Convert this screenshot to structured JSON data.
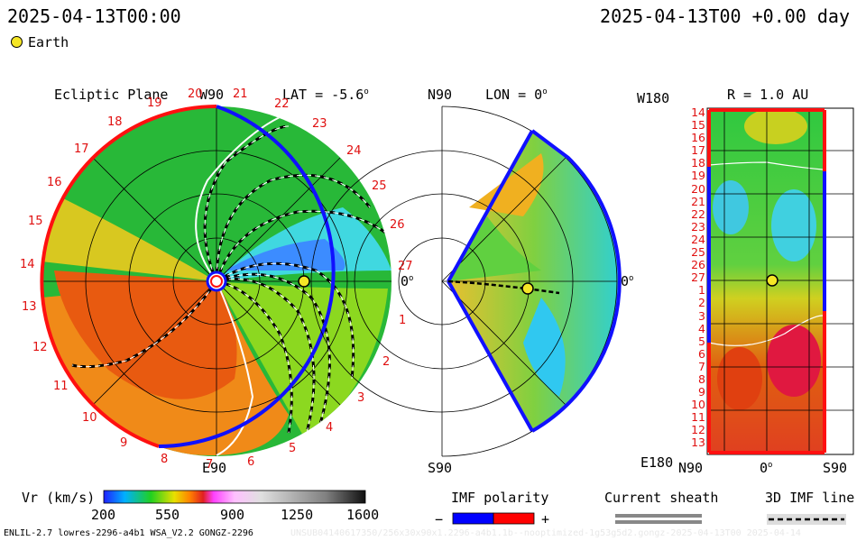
{
  "header": {
    "left_time": "2025-04-13T00:00",
    "right_time": "2025-04-13T00 +0.00 day"
  },
  "legend": {
    "earth_label": "Earth",
    "earth_color": "#f5e626"
  },
  "panels": {
    "ecliptic": {
      "title": "Ecliptic Plane",
      "top_label": "W90",
      "bottom_label": "E90",
      "right_label": "0",
      "lat_label": "LAT = -5.6",
      "degree_mark": "o",
      "sectors_left": [
        "20",
        "19",
        "18",
        "17",
        "16",
        "15",
        "14",
        "13",
        "12",
        "11",
        "10",
        "9",
        "8",
        "7"
      ],
      "sectors_right": [
        "21",
        "22",
        "23",
        "24",
        "25",
        "26",
        "27",
        "1",
        "2",
        "3",
        "4",
        "5",
        "6"
      ]
    },
    "meridional": {
      "top_label": "N90",
      "bottom_label": "S90",
      "lon_label": "LON = 0",
      "right_label": "0",
      "degree_mark": "o"
    },
    "synoptic": {
      "top_left_label": "W180",
      "bottom_left_label": "E180",
      "r_label": "R = 1.0 AU",
      "rows": [
        "14",
        "15",
        "16",
        "17",
        "18",
        "19",
        "20",
        "21",
        "22",
        "23",
        "24",
        "25",
        "26",
        "27",
        "1",
        "2",
        "3",
        "4",
        "5",
        "6",
        "7",
        "8",
        "9",
        "10",
        "11",
        "12",
        "13"
      ],
      "x_labels": [
        "N90",
        "0",
        "S90"
      ],
      "degree_mark": "o"
    }
  },
  "colorbar": {
    "title": "Vr (km/s)",
    "ticks": [
      "200",
      "550",
      "900",
      "1250",
      "1600"
    ]
  },
  "imf_polarity": {
    "title": "IMF polarity",
    "minus": "−",
    "plus": "+",
    "minus_color": "#0000ff",
    "plus_color": "#ff0000"
  },
  "current_sheath": {
    "title": "Current sheath"
  },
  "imf_line": {
    "title": "3D IMF line"
  },
  "footer": {
    "model": "ENLIL-2.7 lowres-2296-a4b1 WSA_V2.2 GONGZ-2296",
    "run_id": "UNSUB04140617350/256x30x90x1.2296-a4b1.1b--nooptimized-1g53g5d2.gongz-2025-04-13T00   2025-04-14"
  }
}
